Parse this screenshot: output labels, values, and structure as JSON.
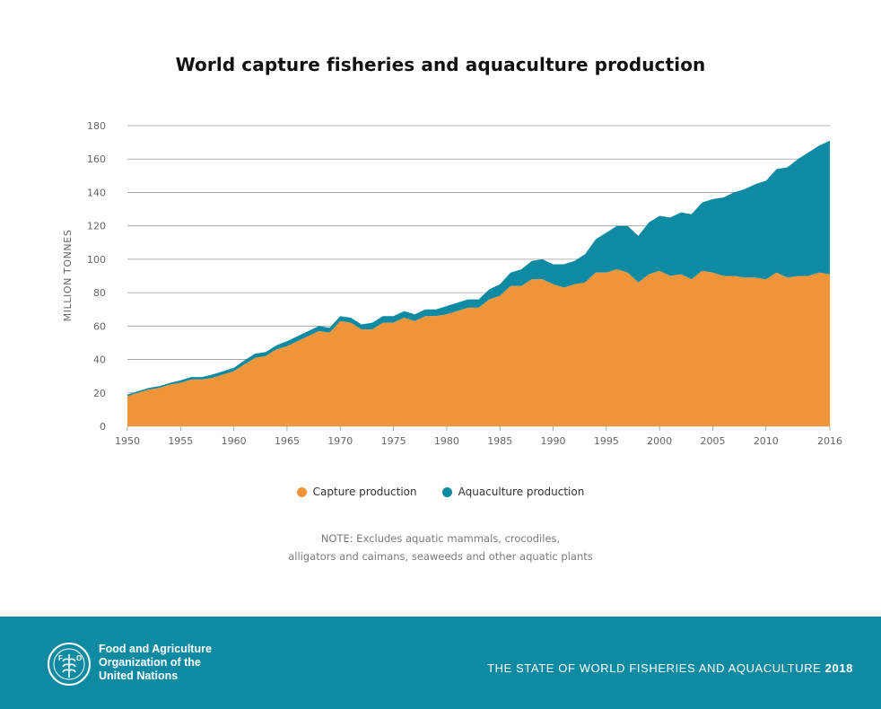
{
  "chart_data": {
    "type": "area",
    "stacked": true,
    "title": "World capture fisheries and aquaculture production",
    "ylabel": "MILLION TONNES",
    "xlabel": "",
    "ylim": [
      0,
      180
    ],
    "xlim": [
      1950,
      2016
    ],
    "y_ticks": [
      "0",
      "20",
      "40",
      "60",
      "80",
      "100",
      "120",
      "140",
      "160",
      "180"
    ],
    "x_ticks": [
      "1950",
      "1955",
      "1960",
      "1965",
      "1970",
      "1975",
      "1980",
      "1985",
      "1990",
      "1995",
      "2000",
      "2005",
      "2010",
      "2016"
    ],
    "grid": "horizontal",
    "legend_position": "bottom",
    "x": [
      1950,
      1951,
      1952,
      1953,
      1954,
      1955,
      1956,
      1957,
      1958,
      1959,
      1960,
      1961,
      1962,
      1963,
      1964,
      1965,
      1966,
      1967,
      1968,
      1969,
      1970,
      1971,
      1972,
      1973,
      1974,
      1975,
      1976,
      1977,
      1978,
      1979,
      1980,
      1981,
      1982,
      1983,
      1984,
      1985,
      1986,
      1987,
      1988,
      1989,
      1990,
      1991,
      1992,
      1993,
      1994,
      1995,
      1996,
      1997,
      1998,
      1999,
      2000,
      2001,
      2002,
      2003,
      2004,
      2005,
      2006,
      2007,
      2008,
      2009,
      2010,
      2011,
      2012,
      2013,
      2014,
      2015,
      2016
    ],
    "series": [
      {
        "name": "Capture production",
        "color": "#f0953a",
        "values": [
          18,
          20,
          22,
          23,
          25,
          26,
          28,
          28,
          29,
          31,
          33,
          37,
          41,
          42,
          46,
          48,
          51,
          54,
          57,
          56,
          63,
          62,
          58,
          58,
          62,
          62,
          65,
          63,
          66,
          66,
          67,
          69,
          71,
          71,
          76,
          78,
          84,
          84,
          88,
          88,
          85,
          83,
          85,
          86,
          92,
          92,
          94,
          92,
          86,
          91,
          93,
          90,
          91,
          88,
          93,
          92,
          90,
          90,
          89,
          89,
          88,
          92,
          89,
          90,
          90,
          92,
          91
        ]
      },
      {
        "name": "Aquaculture production",
        "color": "#0f8aa3",
        "values": [
          1,
          1,
          1,
          1,
          1,
          1.5,
          1.5,
          1.5,
          2,
          2,
          2,
          2.5,
          2.5,
          2.5,
          2.5,
          3,
          3,
          3,
          3,
          3,
          3,
          3,
          3,
          4,
          4,
          4,
          4,
          4,
          4,
          4,
          5,
          5,
          5,
          5,
          6,
          7,
          8,
          10,
          11,
          12,
          12,
          14,
          14,
          17,
          20,
          24,
          26,
          28,
          28,
          31,
          33,
          35,
          37,
          39,
          41,
          44,
          47,
          50,
          53,
          56,
          59,
          62,
          66,
          70,
          74,
          76,
          80
        ]
      }
    ]
  },
  "legend": {
    "capture": "Capture production",
    "aquaculture": "Aquaculture production"
  },
  "note": {
    "line1": "NOTE: Excludes aquatic mammals, crocodiles,",
    "line2": "alligators and caimans, seaweeds and other aquatic plants"
  },
  "footer": {
    "org_line1": "Food and Agriculture",
    "org_line2": "Organization of the",
    "org_line3": "United Nations",
    "report_title": "THE STATE OF WORLD FISHERIES AND AQUACULTURE",
    "report_year": "2018",
    "logo_letters": "F A O",
    "logo_motto": "FIAT PANIS",
    "background": "#0f8aa3"
  }
}
